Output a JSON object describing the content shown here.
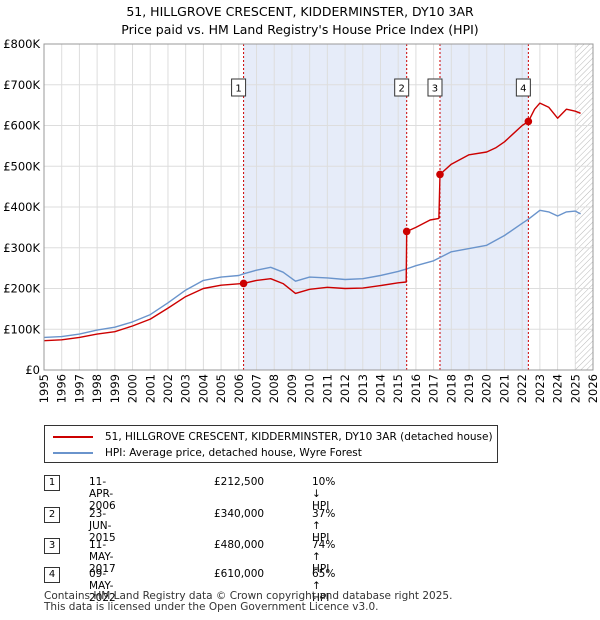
{
  "title_line1": "51, HILLGROVE CRESCENT, KIDDERMINSTER, DY10 3AR",
  "title_line2": "Price paid vs. HM Land Registry's House Price Index (HPI)",
  "colors": {
    "property": "#cc0000",
    "hpi": "#6a94cc",
    "shade": "#e6ecf9",
    "grid": "#dddddd"
  },
  "chart_data": {
    "type": "line",
    "xlim": [
      1995,
      2026
    ],
    "ylim": [
      0,
      800000
    ],
    "x_ticks": [
      "1995",
      "1996",
      "1997",
      "1998",
      "1999",
      "2000",
      "2001",
      "2002",
      "2003",
      "2004",
      "2005",
      "2006",
      "2007",
      "2008",
      "2009",
      "2010",
      "2011",
      "2012",
      "2013",
      "2014",
      "2015",
      "2016",
      "2017",
      "2018",
      "2019",
      "2020",
      "2021",
      "2022",
      "2023",
      "2024",
      "2025",
      "2026"
    ],
    "y_ticks": [
      {
        "value": 0,
        "label": "£0"
      },
      {
        "value": 100000,
        "label": "£100K"
      },
      {
        "value": 200000,
        "label": "£200K"
      },
      {
        "value": 300000,
        "label": "£300K"
      },
      {
        "value": 400000,
        "label": "£400K"
      },
      {
        "value": 500000,
        "label": "£500K"
      },
      {
        "value": 600000,
        "label": "£600K"
      },
      {
        "value": 700000,
        "label": "£700K"
      },
      {
        "value": 800000,
        "label": "£800K"
      }
    ],
    "shaded_periods": [
      [
        2006.27,
        2015.48
      ],
      [
        2017.36,
        2022.35
      ]
    ],
    "hatch_from": 2025.0,
    "series": [
      {
        "name": "51, HILLGROVE CRESCENT, KIDDERMINSTER, DY10 3AR (detached house)",
        "points": [
          [
            1995.0,
            72000
          ],
          [
            1996.0,
            74000
          ],
          [
            1997.0,
            80000
          ],
          [
            1998.0,
            88000
          ],
          [
            1999.0,
            94000
          ],
          [
            2000.0,
            108000
          ],
          [
            2001.0,
            125000
          ],
          [
            2002.0,
            152000
          ],
          [
            2003.0,
            180000
          ],
          [
            2004.0,
            200000
          ],
          [
            2005.0,
            208000
          ],
          [
            2006.27,
            212500
          ],
          [
            2007.0,
            220000
          ],
          [
            2007.8,
            224000
          ],
          [
            2008.5,
            212000
          ],
          [
            2009.2,
            188000
          ],
          [
            2010.0,
            198000
          ],
          [
            2011.0,
            203000
          ],
          [
            2012.0,
            200000
          ],
          [
            2013.0,
            201000
          ],
          [
            2014.0,
            207000
          ],
          [
            2015.0,
            214000
          ],
          [
            2015.45,
            216000
          ],
          [
            2015.48,
            340000
          ],
          [
            2016.0,
            350000
          ],
          [
            2016.8,
            368000
          ],
          [
            2017.3,
            372000
          ],
          [
            2017.36,
            480000
          ],
          [
            2018.0,
            505000
          ],
          [
            2019.0,
            528000
          ],
          [
            2020.0,
            535000
          ],
          [
            2020.5,
            545000
          ],
          [
            2021.0,
            560000
          ],
          [
            2021.5,
            580000
          ],
          [
            2022.0,
            600000
          ],
          [
            2022.35,
            610000
          ],
          [
            2022.7,
            640000
          ],
          [
            2023.0,
            655000
          ],
          [
            2023.5,
            645000
          ],
          [
            2024.0,
            618000
          ],
          [
            2024.5,
            640000
          ],
          [
            2025.0,
            635000
          ],
          [
            2025.3,
            630000
          ]
        ]
      },
      {
        "name": "HPI: Average price, detached house, Wyre Forest",
        "points": [
          [
            1995.0,
            80000
          ],
          [
            1996.0,
            82000
          ],
          [
            1997.0,
            88000
          ],
          [
            1998.0,
            98000
          ],
          [
            1999.0,
            105000
          ],
          [
            2000.0,
            118000
          ],
          [
            2001.0,
            136000
          ],
          [
            2002.0,
            165000
          ],
          [
            2003.0,
            196000
          ],
          [
            2004.0,
            220000
          ],
          [
            2005.0,
            228000
          ],
          [
            2006.0,
            232000
          ],
          [
            2006.27,
            236000
          ],
          [
            2007.0,
            245000
          ],
          [
            2007.8,
            252000
          ],
          [
            2008.5,
            240000
          ],
          [
            2009.2,
            218000
          ],
          [
            2010.0,
            228000
          ],
          [
            2011.0,
            226000
          ],
          [
            2012.0,
            222000
          ],
          [
            2013.0,
            224000
          ],
          [
            2014.0,
            232000
          ],
          [
            2015.0,
            242000
          ],
          [
            2015.48,
            248000
          ],
          [
            2016.0,
            256000
          ],
          [
            2017.0,
            268000
          ],
          [
            2017.36,
            276000
          ],
          [
            2018.0,
            290000
          ],
          [
            2019.0,
            298000
          ],
          [
            2020.0,
            306000
          ],
          [
            2021.0,
            330000
          ],
          [
            2022.0,
            360000
          ],
          [
            2022.35,
            370000
          ],
          [
            2023.0,
            392000
          ],
          [
            2023.5,
            388000
          ],
          [
            2024.0,
            378000
          ],
          [
            2024.5,
            388000
          ],
          [
            2025.0,
            390000
          ],
          [
            2025.3,
            383000
          ]
        ]
      }
    ],
    "markers": [
      {
        "label": "1",
        "x": 2006.27,
        "y": 212500
      },
      {
        "label": "2",
        "x": 2015.48,
        "y": 340000
      },
      {
        "label": "3",
        "x": 2017.36,
        "y": 480000
      },
      {
        "label": "4",
        "x": 2022.35,
        "y": 610000
      }
    ]
  },
  "legend": {
    "property": "51, HILLGROVE CRESCENT, KIDDERMINSTER, DY10 3AR (detached house)",
    "hpi": "HPI: Average price, detached house, Wyre Forest"
  },
  "transactions": [
    {
      "num": "1",
      "date": "11-APR-2006",
      "price": "£212,500",
      "hpi": "10% ↓ HPI"
    },
    {
      "num": "2",
      "date": "23-JUN-2015",
      "price": "£340,000",
      "hpi": "37% ↑ HPI"
    },
    {
      "num": "3",
      "date": "11-MAY-2017",
      "price": "£480,000",
      "hpi": "74% ↑ HPI"
    },
    {
      "num": "4",
      "date": "09-MAY-2022",
      "price": "£610,000",
      "hpi": "65% ↑ HPI"
    }
  ],
  "footer_line1": "Contains HM Land Registry data © Crown copyright and database right 2025.",
  "footer_line2": "This data is licensed under the Open Government Licence v3.0."
}
